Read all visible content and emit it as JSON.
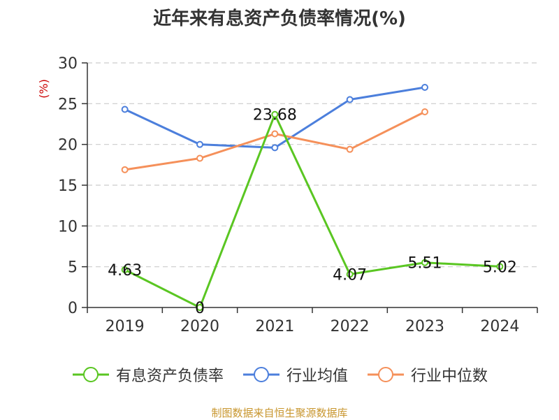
{
  "title": "近年来有息资产负债率情况(%)",
  "source": "制图数据来自恒生聚源数据库",
  "colors": {
    "series_0": "#5ac622",
    "series_1": "#4c7fdc",
    "series_2": "#f5905a",
    "ylabel": "#cc0000",
    "axis": "#333333",
    "grid": "#cccccc"
  },
  "chart_data": {
    "type": "line",
    "title": "近年来有息资产负债率情况(%)",
    "ylabel": "(%)",
    "xlabel": "",
    "categories": [
      "2019",
      "2020",
      "2021",
      "2022",
      "2023",
      "2024"
    ],
    "ylim": [
      0,
      30
    ],
    "yticks": [
      "0",
      "5",
      "10",
      "15",
      "20",
      "25",
      "30"
    ],
    "grid": true,
    "legend_position": "bottom",
    "series": [
      {
        "name": "有息资产负债率",
        "values": [
          4.63,
          0,
          23.68,
          4.07,
          5.51,
          5.02
        ],
        "labels": [
          "4.63",
          "0",
          "23.68",
          "4.07",
          "5.51",
          "5.02"
        ]
      },
      {
        "name": "行业均值",
        "values": [
          24.3,
          20.0,
          19.6,
          25.5,
          27.0,
          null
        ]
      },
      {
        "name": "行业中位数",
        "values": [
          16.9,
          18.3,
          21.3,
          19.4,
          24.0,
          null
        ]
      }
    ]
  }
}
